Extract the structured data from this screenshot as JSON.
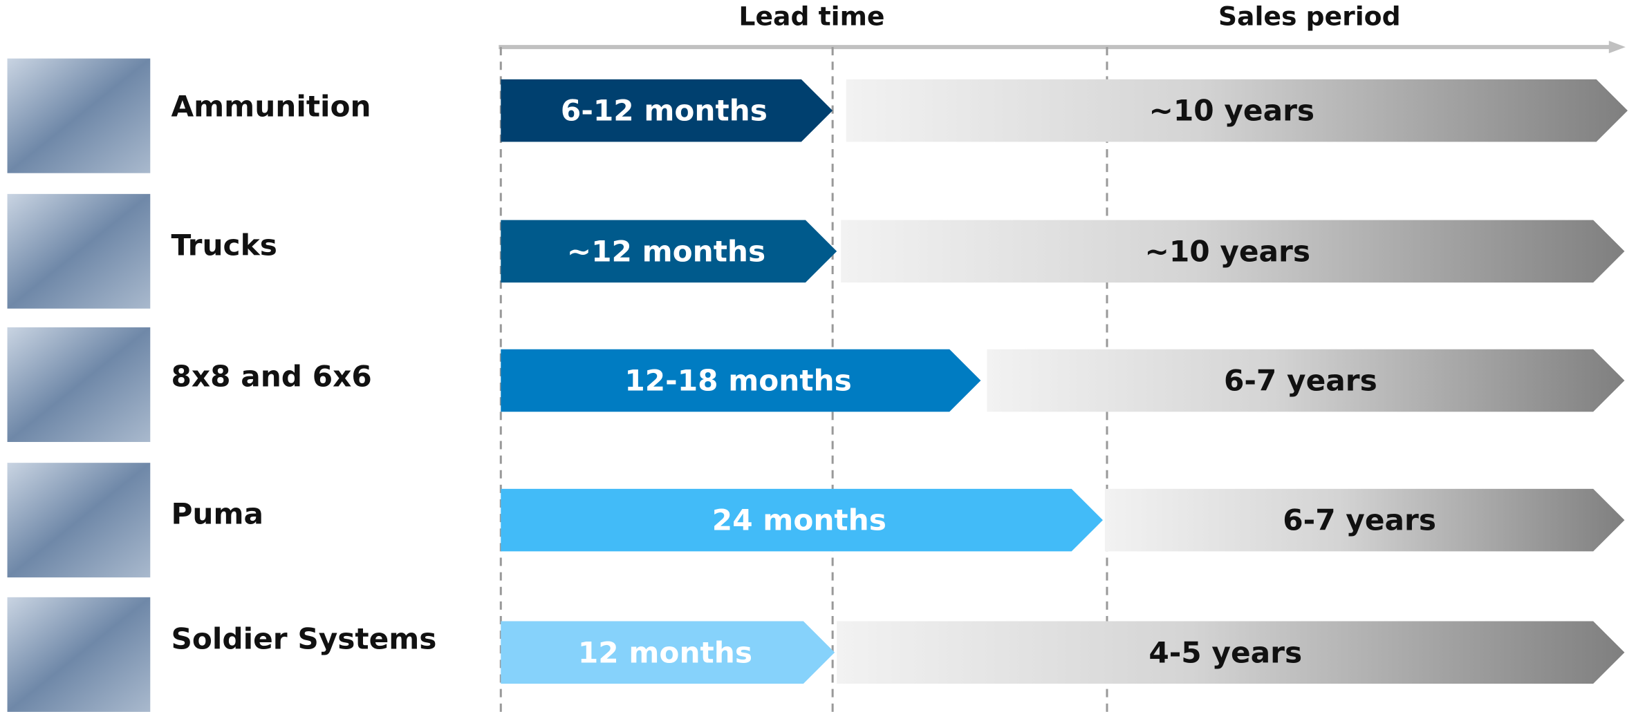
{
  "header": {
    "lead": "Lead time",
    "sales": "Sales period"
  },
  "rows": [
    {
      "label": "Ammunition",
      "lead": "6-12 months",
      "sales": "~10 years"
    },
    {
      "label": "Trucks",
      "lead": "~12 months",
      "sales": "~10 years"
    },
    {
      "label": "8x8 and 6x6",
      "lead": "12-18 months",
      "sales": "6-7 years"
    },
    {
      "label": "Puma",
      "lead": "24 months",
      "sales": "6-7 years"
    },
    {
      "label": "Soldier Systems",
      "lead": "12 months",
      "sales": "4-5 years"
    }
  ]
}
